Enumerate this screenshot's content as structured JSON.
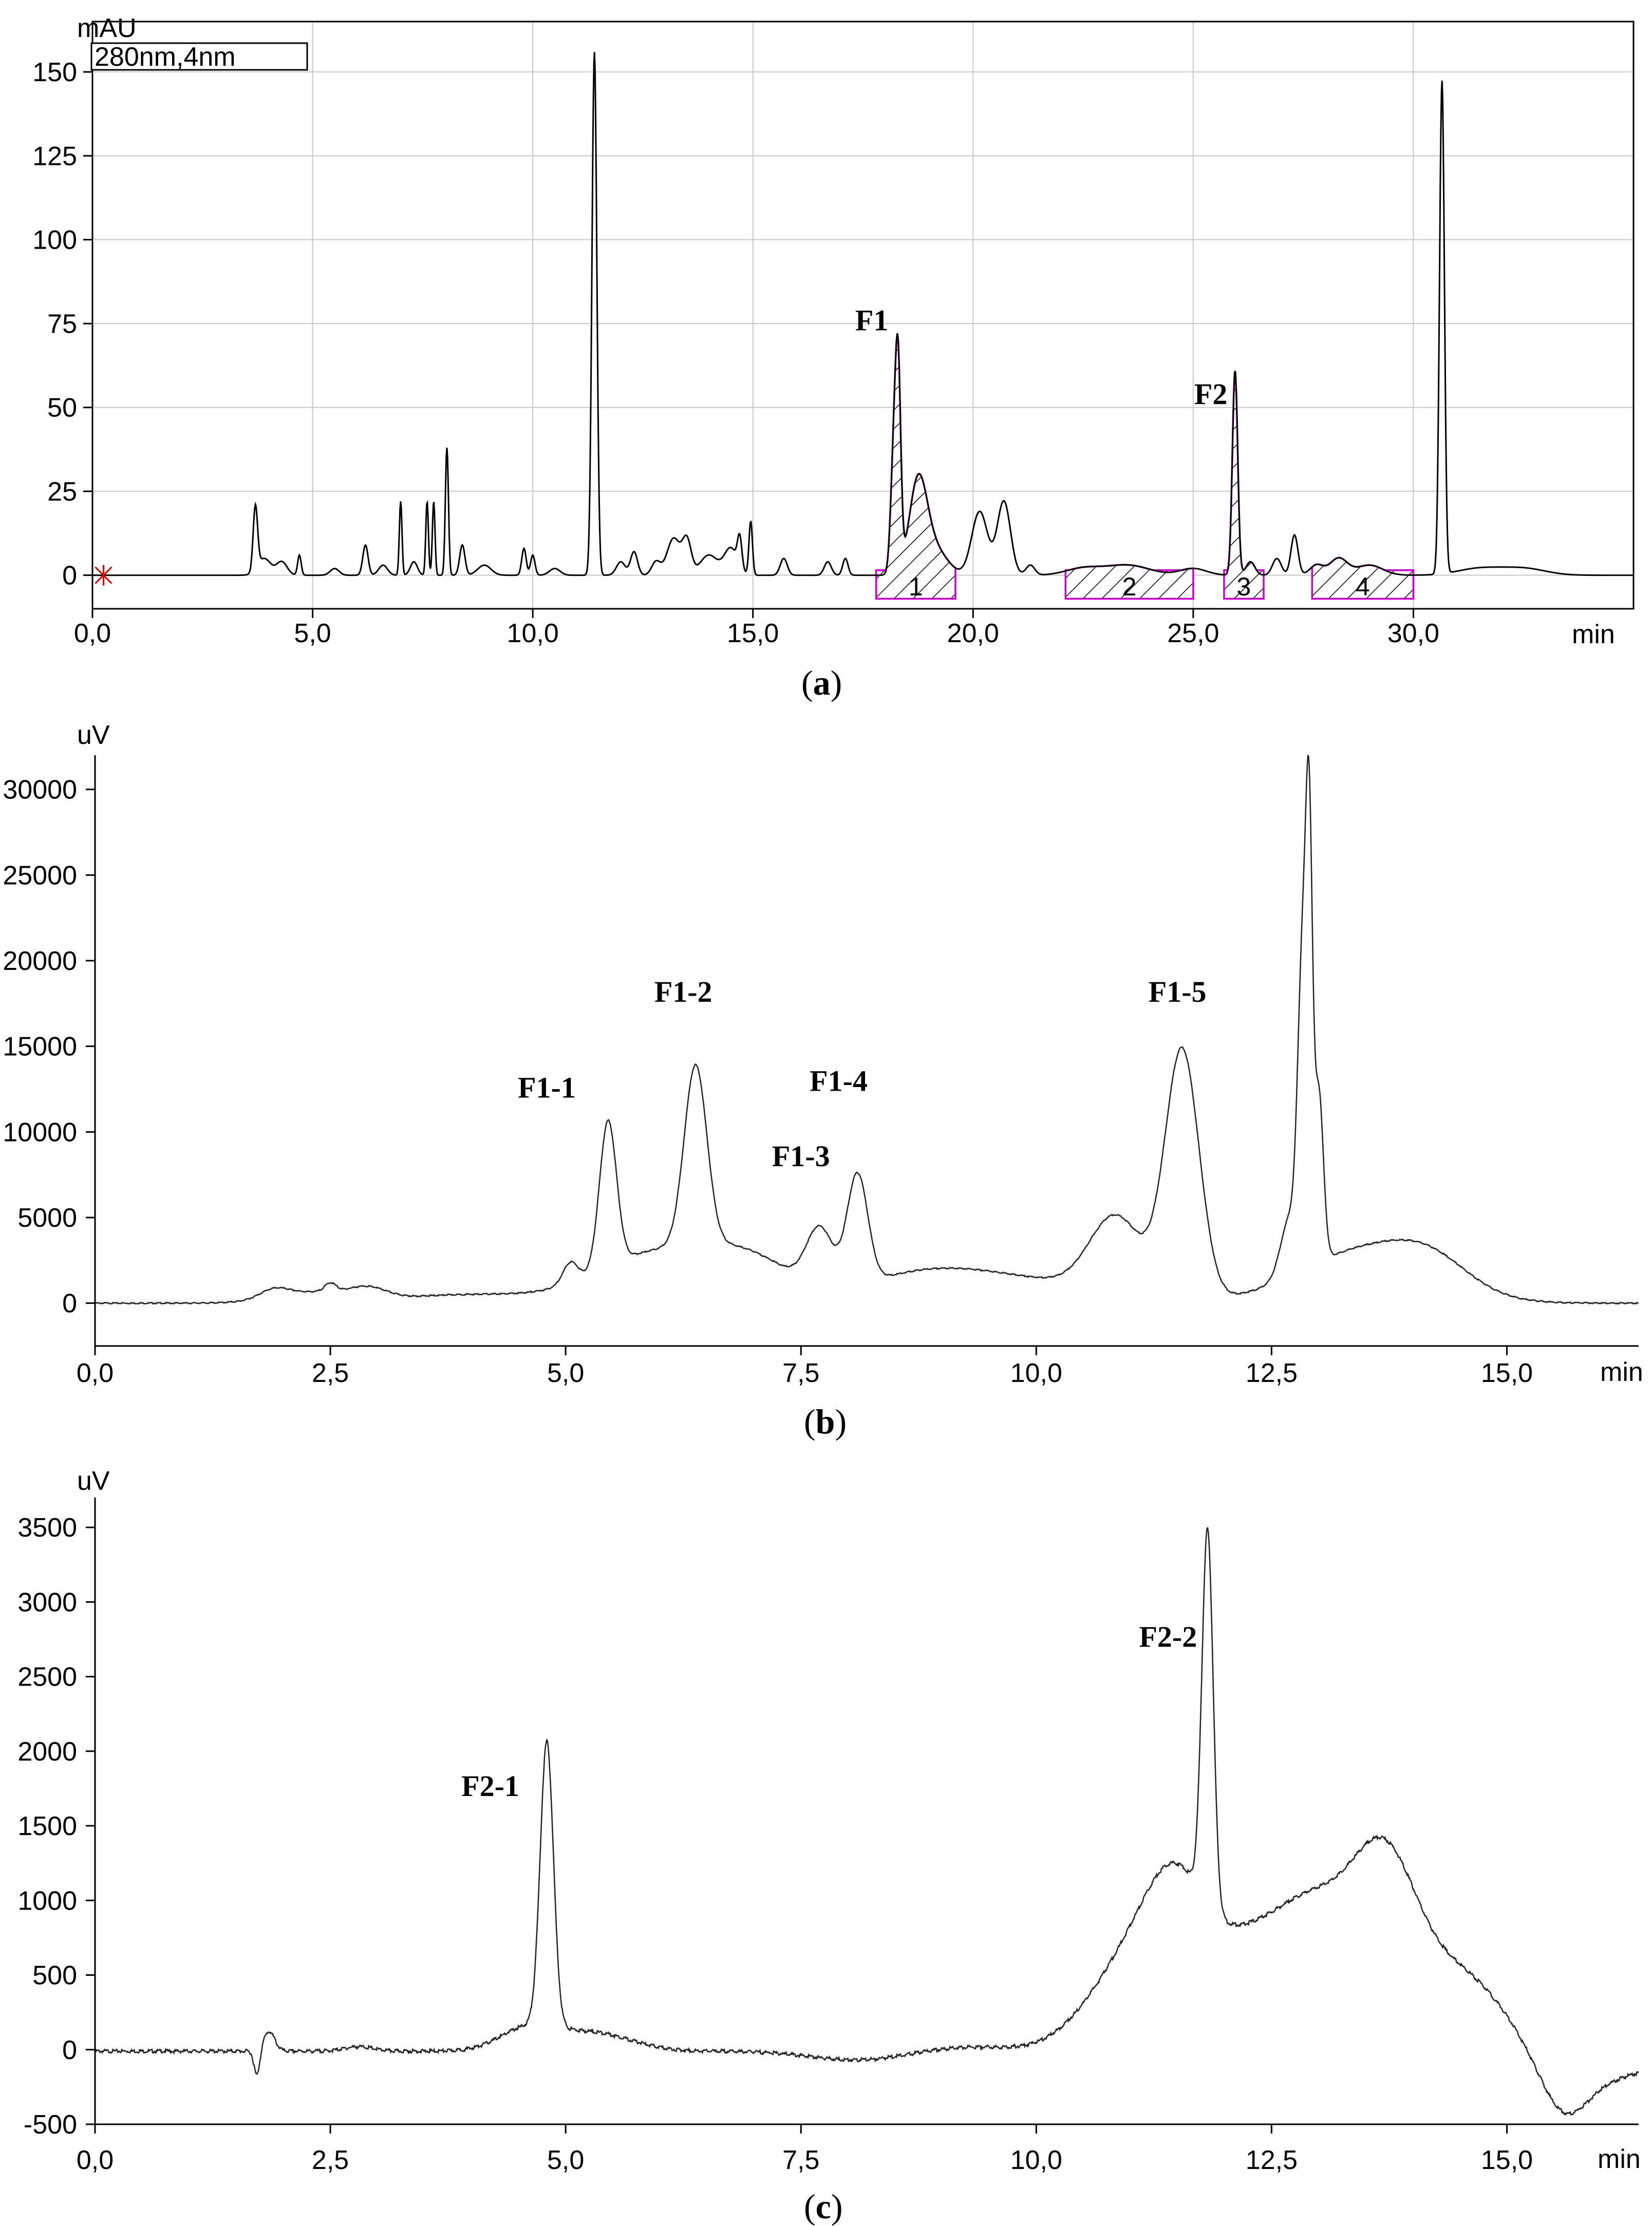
{
  "chart_data": [
    {
      "type": "line",
      "title": "",
      "caption": "a",
      "legend": "280nm,4nm",
      "ylabel": "mAU",
      "xlabel": "min",
      "xlim": [
        0,
        35
      ],
      "ylim": [
        -10,
        165
      ],
      "xticks": [
        "0,0",
        "5,0",
        "10,0",
        "15,0",
        "20,0",
        "25,0",
        "30,0"
      ],
      "xtick_values": [
        0,
        5,
        10,
        15,
        20,
        25,
        30
      ],
      "yticks": [
        "0",
        "25",
        "50",
        "75",
        "100",
        "125",
        "150"
      ],
      "ytick_values": [
        0,
        25,
        50,
        75,
        100,
        125,
        150
      ],
      "baseline": 0,
      "peaks": [
        {
          "x": 3.7,
          "y": 19,
          "w": 0.05
        },
        {
          "x": 3.9,
          "y": 5,
          "w": 0.15
        },
        {
          "x": 4.3,
          "y": 4,
          "w": 0.12
        },
        {
          "x": 4.7,
          "y": 6,
          "w": 0.04
        },
        {
          "x": 5.5,
          "y": 2,
          "w": 0.1
        },
        {
          "x": 6.2,
          "y": 9,
          "w": 0.06
        },
        {
          "x": 6.6,
          "y": 3,
          "w": 0.1
        },
        {
          "x": 7.0,
          "y": 22,
          "w": 0.03
        },
        {
          "x": 7.3,
          "y": 4,
          "w": 0.08
        },
        {
          "x": 7.6,
          "y": 22,
          "w": 0.03
        },
        {
          "x": 7.75,
          "y": 22,
          "w": 0.03
        },
        {
          "x": 8.05,
          "y": 38,
          "w": 0.035
        },
        {
          "x": 8.4,
          "y": 9,
          "w": 0.06
        },
        {
          "x": 8.9,
          "y": 3,
          "w": 0.15
        },
        {
          "x": 9.8,
          "y": 8,
          "w": 0.05
        },
        {
          "x": 10.0,
          "y": 6,
          "w": 0.05
        },
        {
          "x": 10.5,
          "y": 2,
          "w": 0.12
        },
        {
          "x": 11.4,
          "y": 156,
          "w": 0.055
        },
        {
          "x": 12.0,
          "y": 4,
          "w": 0.1
        },
        {
          "x": 12.3,
          "y": 7,
          "w": 0.08
        },
        {
          "x": 12.8,
          "y": 4,
          "w": 0.1
        },
        {
          "x": 13.2,
          "y": 11,
          "w": 0.15
        },
        {
          "x": 13.5,
          "y": 10,
          "w": 0.1
        },
        {
          "x": 14.0,
          "y": 6,
          "w": 0.2
        },
        {
          "x": 14.5,
          "y": 8,
          "w": 0.15
        },
        {
          "x": 14.7,
          "y": 9,
          "w": 0.05
        },
        {
          "x": 14.95,
          "y": 16,
          "w": 0.04
        },
        {
          "x": 15.7,
          "y": 5,
          "w": 0.08
        },
        {
          "x": 16.7,
          "y": 4,
          "w": 0.08
        },
        {
          "x": 17.1,
          "y": 5,
          "w": 0.06
        },
        {
          "x": 18.2,
          "y": 35,
          "w": 0.07
        },
        {
          "x": 18.3,
          "y": 55,
          "w": 0.06
        },
        {
          "x": 18.75,
          "y": 26,
          "w": 0.2
        },
        {
          "x": 19.1,
          "y": 8,
          "w": 0.3
        },
        {
          "x": 20.15,
          "y": 19,
          "w": 0.18
        },
        {
          "x": 20.7,
          "y": 22,
          "w": 0.15
        },
        {
          "x": 21.3,
          "y": 3,
          "w": 0.1
        },
        {
          "x": 22.5,
          "y": 2,
          "w": 0.4
        },
        {
          "x": 23.5,
          "y": 3,
          "w": 0.5
        },
        {
          "x": 25.0,
          "y": 2,
          "w": 0.3
        },
        {
          "x": 25.95,
          "y": 61,
          "w": 0.06
        },
        {
          "x": 26.3,
          "y": 4,
          "w": 0.1
        },
        {
          "x": 26.9,
          "y": 5,
          "w": 0.1
        },
        {
          "x": 27.3,
          "y": 12,
          "w": 0.08
        },
        {
          "x": 27.8,
          "y": 3,
          "w": 0.15
        },
        {
          "x": 28.3,
          "y": 5,
          "w": 0.2
        },
        {
          "x": 29.0,
          "y": 3,
          "w": 0.3
        },
        {
          "x": 30.65,
          "y": 147,
          "w": 0.055
        },
        {
          "x": 31.5,
          "y": 2,
          "w": 0.5
        },
        {
          "x": 32.5,
          "y": 2,
          "w": 0.5
        }
      ],
      "fractions": [
        {
          "label": "1",
          "x_start": 17.8,
          "x_end": 19.6
        },
        {
          "label": "2",
          "x_start": 22.1,
          "x_end": 25.0
        },
        {
          "label": "3",
          "x_start": 25.7,
          "x_end": 26.6
        },
        {
          "label": "4",
          "x_start": 27.7,
          "x_end": 30.0
        }
      ],
      "annotations": [
        {
          "text": "F1",
          "x": 17.7,
          "y": 73
        },
        {
          "text": "F2",
          "x": 25.4,
          "y": 51
        }
      ]
    },
    {
      "type": "line",
      "title": "",
      "caption": "b",
      "ylabel": "uV",
      "xlabel": "min",
      "xlim": [
        0,
        16.4
      ],
      "ylim": [
        -2500,
        32000
      ],
      "xticks": [
        "0,0",
        "2,5",
        "5,0",
        "7,5",
        "10,0",
        "12,5",
        "15,0"
      ],
      "xtick_values": [
        0,
        2.5,
        5,
        7.5,
        10,
        12.5,
        15
      ],
      "yticks": [
        "0",
        "5000",
        "10000",
        "15000",
        "20000",
        "25000",
        "30000"
      ],
      "ytick_values": [
        0,
        5000,
        10000,
        15000,
        20000,
        25000,
        30000
      ],
      "baseline": 0,
      "peaks": [
        {
          "x": 1.9,
          "y": 500,
          "w": 0.15
        },
        {
          "x": 2.3,
          "y": 600,
          "w": 0.4
        },
        {
          "x": 2.5,
          "y": 500,
          "w": 0.06
        },
        {
          "x": 2.9,
          "y": 600,
          "w": 0.2
        },
        {
          "x": 4.0,
          "y": 500,
          "w": 0.8
        },
        {
          "x": 5.05,
          "y": 1200,
          "w": 0.08
        },
        {
          "x": 5.45,
          "y": 8500,
          "w": 0.09
        },
        {
          "x": 5.9,
          "y": 2700,
          "w": 0.6
        },
        {
          "x": 6.38,
          "y": 10500,
          "w": 0.12
        },
        {
          "x": 6.9,
          "y": 2500,
          "w": 0.5
        },
        {
          "x": 7.7,
          "y": 3300,
          "w": 0.14
        },
        {
          "x": 8.1,
          "y": 6400,
          "w": 0.11
        },
        {
          "x": 8.8,
          "y": 1600,
          "w": 0.7
        },
        {
          "x": 10.0,
          "y": 1100,
          "w": 0.8
        },
        {
          "x": 10.85,
          "y": 4500,
          "w": 0.28
        },
        {
          "x": 11.55,
          "y": 14500,
          "w": 0.18
        },
        {
          "x": 12.7,
          "y": 3500,
          "w": 0.1
        },
        {
          "x": 12.83,
          "y": 17000,
          "w": 0.05
        },
        {
          "x": 12.9,
          "y": 21000,
          "w": 0.035
        },
        {
          "x": 13.0,
          "y": 10000,
          "w": 0.05
        },
        {
          "x": 13.5,
          "y": 3100,
          "w": 0.7
        },
        {
          "x": 14.2,
          "y": 1400,
          "w": 0.4
        }
      ],
      "annotations": [
        {
          "text": "F1-1",
          "x": 4.8,
          "y": 12000
        },
        {
          "text": "F1-2",
          "x": 6.25,
          "y": 17600
        },
        {
          "text": "F1-3",
          "x": 7.5,
          "y": 8000
        },
        {
          "text": "F1-4",
          "x": 7.9,
          "y": 12400
        },
        {
          "text": "F1-5",
          "x": 11.5,
          "y": 17600
        }
      ]
    },
    {
      "type": "line",
      "title": "",
      "caption": "c",
      "ylabel": "uV",
      "xlabel": "min",
      "xlim": [
        0,
        16.4
      ],
      "ylim": [
        -500,
        3700
      ],
      "xticks": [
        "0,0",
        "2,5",
        "5,0",
        "7,5",
        "10,0",
        "12,5",
        "15,0"
      ],
      "xtick_values": [
        0,
        2.5,
        5,
        7.5,
        10,
        12.5,
        15
      ],
      "yticks": [
        "-500",
        "0",
        "500",
        "1000",
        "1500",
        "2000",
        "2500",
        "3000",
        "3500"
      ],
      "ytick_values": [
        -500,
        0,
        500,
        1000,
        1500,
        2000,
        2500,
        3000,
        3500
      ],
      "baseline": -10,
      "peaks": [
        {
          "x": 1.72,
          "y": -170,
          "w": 0.03
        },
        {
          "x": 1.85,
          "y": 130,
          "w": 0.06
        },
        {
          "x": 2.8,
          "y": 30,
          "w": 0.15
        },
        {
          "x": 4.6,
          "y": 150,
          "w": 0.3
        },
        {
          "x": 4.8,
          "y": 1900,
          "w": 0.07
        },
        {
          "x": 5.3,
          "y": 120,
          "w": 0.4
        },
        {
          "x": 8.1,
          "y": -60,
          "w": 0.5
        },
        {
          "x": 9.3,
          "y": 30,
          "w": 0.5
        },
        {
          "x": 10.6,
          "y": 200,
          "w": 0.35
        },
        {
          "x": 11.1,
          "y": 550,
          "w": 0.35
        },
        {
          "x": 11.5,
          "y": 700,
          "w": 0.3
        },
        {
          "x": 11.82,
          "y": 2500,
          "w": 0.06
        },
        {
          "x": 12.2,
          "y": 700,
          "w": 0.5
        },
        {
          "x": 13.0,
          "y": 750,
          "w": 0.4
        },
        {
          "x": 13.7,
          "y": 1150,
          "w": 0.35
        },
        {
          "x": 14.5,
          "y": 500,
          "w": 0.45
        },
        {
          "x": 15.6,
          "y": -330,
          "w": 0.25
        },
        {
          "x": 16.1,
          "y": -170,
          "w": 0.5
        }
      ],
      "annotations": [
        {
          "text": "F2-1",
          "x": 4.2,
          "y": 1700
        },
        {
          "text": "F2-2",
          "x": 11.4,
          "y": 2700
        }
      ]
    }
  ]
}
